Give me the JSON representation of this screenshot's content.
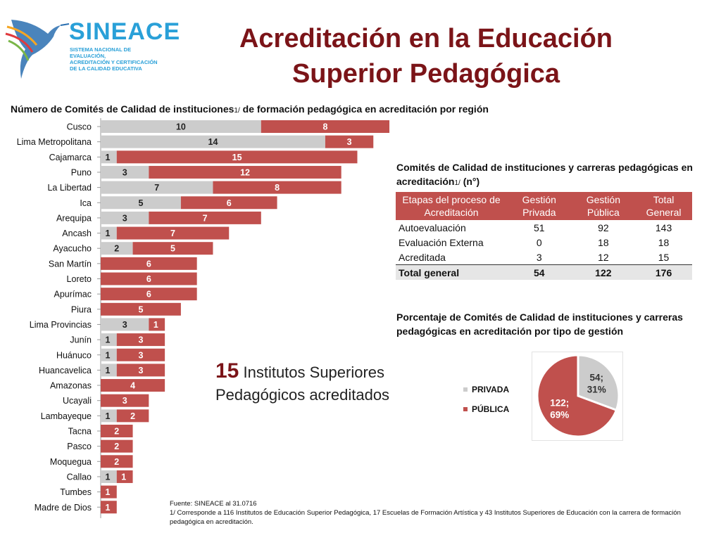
{
  "logo": {
    "name": "SINEACE",
    "subtitle_lines": [
      "SISTEMA NACIONAL DE EVALUACIÓN,",
      "ACREDITACIÓN Y CERTIFICACIÓN",
      "DE LA CALIDAD EDUCATIVA"
    ]
  },
  "title": {
    "line1": "Acreditación en la Educación",
    "line2": "Superior Pedagógica"
  },
  "bar_section": {
    "title_before": "Número de Comités de Calidad de instituciones",
    "title_sup": "1/",
    "title_after": " de formación pedagógica en acreditación por región"
  },
  "colors": {
    "privada": "#cccccc",
    "publica": "#c0504d",
    "title": "#7b1418",
    "brand": "#29a0d8"
  },
  "chart_data": [
    {
      "type": "bar",
      "orientation": "horizontal",
      "stacked": true,
      "title": "Número de Comités de Calidad de instituciones 1/ de formación pedagógica en acreditación por región",
      "categories": [
        "Cusco",
        "Lima Metropolitana",
        "Cajamarca",
        "Puno",
        "La Libertad",
        "Ica",
        "Arequipa",
        "Ancash",
        "Ayacucho",
        "San Martín",
        "Loreto",
        "Apurímac",
        "Piura",
        "Lima Provincias",
        "Junín",
        "Huánuco",
        "Huancavelica",
        "Amazonas",
        "Ucayali",
        "Lambayeque",
        "Tacna",
        "Pasco",
        "Moquegua",
        "Callao",
        "Tumbes",
        "Madre de Dios"
      ],
      "series": [
        {
          "name": "PRIVADA",
          "values": [
            10,
            14,
            1,
            3,
            7,
            5,
            3,
            1,
            2,
            0,
            0,
            0,
            0,
            3,
            1,
            1,
            1,
            0,
            0,
            1,
            0,
            0,
            0,
            1,
            0,
            0
          ]
        },
        {
          "name": "PÚBLICA",
          "values": [
            8,
            3,
            15,
            12,
            8,
            6,
            7,
            7,
            5,
            6,
            6,
            6,
            5,
            1,
            3,
            3,
            3,
            4,
            3,
            2,
            2,
            2,
            2,
            1,
            1,
            1
          ]
        }
      ],
      "data_labels": true,
      "grid": false
    },
    {
      "type": "pie",
      "title": "Porcentaje de Comités de Calidad de instituciones y carreras pedagógicas en acreditación por tipo de gestión",
      "labels": [
        "PRIVADA",
        "PÚBLICA"
      ],
      "values": [
        54,
        122
      ],
      "percent": [
        31,
        69
      ],
      "slice_labels": [
        "54;\n31%",
        "122;\n69%"
      ],
      "legend": "left"
    }
  ],
  "table_section": {
    "title_before": "Comités de Calidad de  instituciones y carreras pedagógicas en acreditación",
    "title_sup": "1/",
    "title_after": "  (n°)",
    "headers": [
      "Etapas del proceso de Acreditación",
      "Gestión Privada",
      "Gestión Pública",
      "Total General"
    ],
    "rows": [
      [
        "Autoevaluación",
        "51",
        "92",
        "143"
      ],
      [
        "Evaluación Externa",
        "0",
        "18",
        "18"
      ],
      [
        "Acreditada",
        "3",
        "12",
        "15"
      ]
    ],
    "total": [
      "Total general",
      "54",
      "122",
      "176"
    ]
  },
  "pie_section": {
    "title": "Porcentaje de Comités de Calidad de instituciones y carreras pedagógicas en acreditación por tipo de gestión",
    "legend": [
      {
        "label": "PRIVADA",
        "color": "#cccccc"
      },
      {
        "label": "PÚBLICA",
        "color": "#c0504d"
      }
    ]
  },
  "highlight": {
    "number": "15",
    "text1": " Institutos Superiores",
    "text2": "Pedagógicos acreditados"
  },
  "footnote": {
    "source": "Fuente: SINEACE al  31.0716",
    "note": "1/ Corresponde a 116 Institutos de Educación Superior Pedagógica, 17 Escuelas de Formación Artística y 43 Institutos Superiores de Educación con la carrera de formación pedagógica en acreditación."
  }
}
